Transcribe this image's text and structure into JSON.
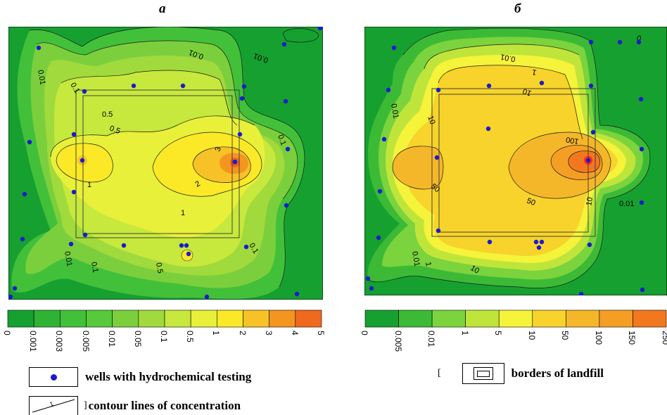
{
  "panels": {
    "a": {
      "title": "а"
    },
    "b": {
      "title": "б"
    }
  },
  "scale_a": [
    "0",
    "0.001",
    "0.003",
    "0.005",
    "0.01",
    "0.05",
    "0.1",
    "0.5",
    "1",
    "2",
    "3",
    "4",
    "5"
  ],
  "scale_b": [
    "0",
    "0.005",
    "0.01",
    "1",
    "5",
    "10",
    "50",
    "100",
    "150",
    "250"
  ],
  "contours_a": {
    "c1": "0.01",
    "c2": "0.1",
    "c3": "0.01",
    "c4": "0.1",
    "c5": "0.5",
    "c6": "0.5",
    "c7": "1",
    "c8": "2",
    "c9": "3",
    "c10": "1",
    "c11": "0.5",
    "c12": "0.1",
    "c13": "0.01",
    "c14": "0.01",
    "c15": "0.1"
  },
  "contours_b": {
    "c1": "0.01",
    "c2": "1",
    "c3": "0.01",
    "c4": "10",
    "c5": "10",
    "c6": "100",
    "c7": "50",
    "c8": "50",
    "c9": "10",
    "c10": "10",
    "c11": "0.01",
    "c12": "0.01",
    "c13": "1",
    "c14": "0"
  },
  "legend": {
    "wells": "wells with hydrochemical testing",
    "contours": "contour lines of concentration",
    "contour_sample": "1",
    "borders": "borders of landfill",
    "bracket1": "[",
    "bracket2": "]"
  },
  "colors": {
    "scale_a": [
      "#16a030",
      "#2fb334",
      "#42c03a",
      "#58c93a",
      "#7ccf3c",
      "#a0da3c",
      "#c7e83c",
      "#e8f03a",
      "#fbe928",
      "#f6c226",
      "#f49520",
      "#ef6a1f",
      "#ff2a1c"
    ],
    "scale_b": [
      "#16a030",
      "#3cba36",
      "#7bd33d",
      "#bfe53b",
      "#f5f33a",
      "#f7d32b",
      "#f5b72a",
      "#f49e24",
      "#f2781f",
      "#ff2a1c"
    ],
    "well": "#1a1ad0"
  }
}
